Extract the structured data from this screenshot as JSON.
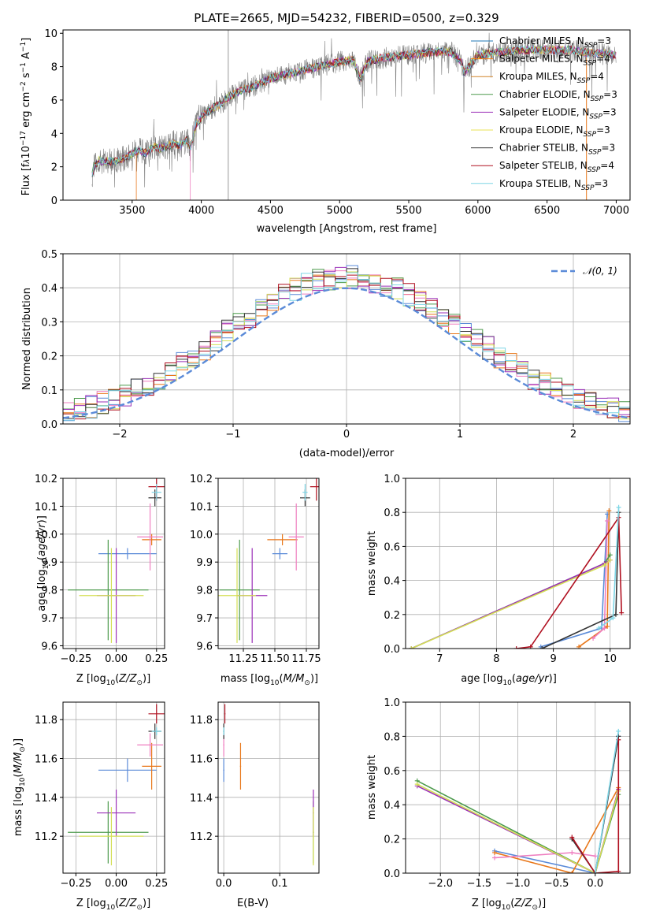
{
  "chart_data": [
    {
      "id": "spectrum",
      "type": "line",
      "title": "PLATE=2665, MJD=54232, FIBERID=0500, z=0.329",
      "xlabel": "wavelength [Angstrom, rest frame]",
      "ylabel": "Flux [f_λ10^-17 erg cm^-2 s^-1 A^-1]",
      "xlim": [
        3000,
        7100
      ],
      "ylim": [
        0,
        10.2
      ],
      "xticks": [
        3500,
        4000,
        4500,
        5000,
        5500,
        6000,
        6500,
        7000
      ],
      "yticks": [
        0,
        2,
        4,
        6,
        8,
        10
      ],
      "observed": {
        "x": [
          3210,
          3230,
          3260,
          3300,
          3350,
          3400,
          3450,
          3500,
          3550,
          3600,
          3650,
          3700,
          3750,
          3800,
          3850,
          3900,
          3920,
          3960,
          4000,
          4050,
          4100,
          4150,
          4200,
          4250,
          4300,
          4350,
          4400,
          4450,
          4500,
          4600,
          4700,
          4800,
          4900,
          5000,
          5100,
          5150,
          5200,
          5300,
          5400,
          5500,
          5600,
          5700,
          5800,
          5880,
          5900,
          6000,
          6100,
          6200,
          6300,
          6400,
          6500,
          6600,
          6700,
          6800,
          6900,
          7000
        ],
        "y": [
          1.6,
          2.1,
          2.4,
          2.3,
          2.3,
          2.4,
          2.5,
          2.8,
          3.0,
          2.8,
          3.2,
          3.1,
          3.2,
          3.4,
          3.3,
          3.6,
          3.0,
          4.5,
          5.0,
          5.3,
          5.6,
          5.8,
          6.2,
          6.4,
          6.6,
          6.7,
          6.9,
          7.1,
          7.3,
          7.5,
          7.7,
          7.9,
          8.1,
          8.3,
          8.4,
          7.3,
          8.3,
          8.5,
          8.6,
          8.7,
          8.8,
          8.9,
          8.9,
          8.3,
          7.6,
          8.7,
          8.8,
          8.9,
          9.0,
          9.0,
          9.0,
          9.0,
          9.0,
          8.8,
          8.8,
          8.7
        ]
      },
      "legend": [
        {
          "name": "Chabrier MILES, N_SSP=3",
          "color": "#1f77b4"
        },
        {
          "name": "Salpeter MILES, N_SSP=4",
          "color": "#ff7f0e"
        },
        {
          "name": "Kroupa MILES, N_SSP=4",
          "color": "#d1862a"
        },
        {
          "name": "Chabrier ELODIE, N_SSP=3",
          "color": "#4c9a4c"
        },
        {
          "name": "Salpeter ELODIE, N_SSP=3",
          "color": "#9b30b8"
        },
        {
          "name": "Kroupa ELODIE, N_SSP=3",
          "color": "#e8e055"
        },
        {
          "name": "Chabrier STELIB, N_SSP=3",
          "color": "#333333"
        },
        {
          "name": "Salpeter STELIB, N_SSP=4",
          "color": "#b01020"
        },
        {
          "name": "Kroupa STELIB, N_SSP=3",
          "color": "#7fd6e6"
        }
      ]
    },
    {
      "id": "residuals",
      "type": "line",
      "xlabel": "(data-model)/error",
      "ylabel": "Normed distribution",
      "xlim": [
        -2.5,
        2.5
      ],
      "ylim": [
        0,
        0.5
      ],
      "xticks": [
        -2,
        -1,
        0,
        1,
        2
      ],
      "yticks": [
        0.0,
        0.1,
        0.2,
        0.3,
        0.4,
        0.5
      ],
      "legend": [
        {
          "name": "N(0,1)",
          "color": "#5b8bd8"
        }
      ]
    },
    {
      "id": "age_vs_Z",
      "type": "scatter",
      "xlabel": "Z [log10(Z/Z⊙)]",
      "ylabel": "age  [log10(age/yr)]",
      "xlim": [
        -0.33,
        0.3
      ],
      "ylim": [
        9.59,
        10.2
      ],
      "xticks": [
        -0.25,
        0.0,
        0.25
      ],
      "yticks": [
        9.6,
        9.7,
        9.8,
        9.9,
        10.0,
        10.1,
        10.2
      ]
    },
    {
      "id": "age_vs_mass",
      "type": "scatter",
      "xlabel": "mass [log10(M/M⊙)]",
      "xlim": [
        11.05,
        11.85
      ],
      "ylim": [
        9.59,
        10.2
      ],
      "xticks": [
        11.25,
        11.5,
        11.75
      ],
      "yticks": [
        9.6,
        9.7,
        9.8,
        9.9,
        10.0,
        10.1,
        10.2
      ]
    },
    {
      "id": "weight_vs_age",
      "type": "line",
      "xlabel": "age  [log10(age/yr)]",
      "ylabel": "mass weight",
      "xlim": [
        6.4,
        10.35
      ],
      "ylim": [
        0,
        1.0
      ],
      "xticks": [
        7,
        8,
        9,
        10
      ],
      "yticks": [
        0.0,
        0.2,
        0.4,
        0.6,
        0.8,
        1.0
      ]
    },
    {
      "id": "mass_vs_Z",
      "type": "scatter",
      "xlabel": "Z [log10(Z/Z⊙)]",
      "ylabel": "mass [log10(M/M⊙)]",
      "xlim": [
        -0.33,
        0.3
      ],
      "ylim": [
        11.01,
        11.89
      ],
      "xticks": [
        -0.25,
        0.0,
        0.25
      ],
      "yticks": [
        11.2,
        11.4,
        11.6,
        11.8
      ]
    },
    {
      "id": "mass_vs_ebv",
      "type": "scatter",
      "xlabel": "E(B-V)",
      "xlim": [
        -0.01,
        0.17
      ],
      "ylim": [
        11.01,
        11.89
      ],
      "xticks": [
        0.0,
        0.1
      ],
      "yticks": [
        11.2,
        11.4,
        11.6,
        11.8
      ]
    },
    {
      "id": "weight_vs_Z",
      "type": "line",
      "xlabel": "Z [log10(Z/Z⊙)]",
      "ylabel": "mass weight",
      "xlim": [
        -2.45,
        0.45
      ],
      "ylim": [
        0,
        1.0
      ],
      "xticks": [
        -2.0,
        -1.5,
        -1.0,
        -0.5,
        0.0
      ],
      "yticks": [
        0.0,
        0.2,
        0.4,
        0.6,
        0.8,
        1.0
      ]
    }
  ],
  "models": [
    {
      "color": "#5b8bd8",
      "Z": 0.07,
      "Zerr": 0.18,
      "age": 9.93,
      "ageErr": 0.0,
      "mass": 11.54,
      "massErr": 0.06,
      "ebv": 0.0,
      "w_age": [
        [
          8.78,
          0.01
        ],
        [
          9.85,
          0.12
        ],
        [
          9.95,
          0.79
        ]
      ],
      "w_Z": [
        [
          -1.3,
          0.13
        ],
        [
          0.0,
          0.0
        ],
        [
          0.3,
          0.8
        ]
      ]
    },
    {
      "color": "#e8771a",
      "Z": 0.22,
      "Zerr": 0.06,
      "age": 9.98,
      "ageErr": 0.0,
      "mass": 11.56,
      "massErr": 0.12,
      "ebv": 0.03,
      "w_age": [
        [
          9.45,
          0.01
        ],
        [
          9.95,
          0.13
        ],
        [
          9.98,
          0.81
        ]
      ],
      "w_Z": [
        [
          -1.3,
          0.12
        ],
        [
          -0.3,
          0.0
        ],
        [
          0.3,
          0.5
        ]
      ]
    },
    {
      "color": "#ef7fc0",
      "Z": 0.21,
      "Zerr": 0.08,
      "age": 9.99,
      "ageErr": 0.12,
      "mass": 11.67,
      "massErr": 0.06,
      "ebv": 0.0,
      "w_age": [
        [
          9.7,
          0.06
        ],
        [
          9.9,
          0.12
        ],
        [
          9.95,
          0.75
        ]
      ],
      "w_Z": [
        [
          -1.3,
          0.09
        ],
        [
          -0.3,
          0.12
        ],
        [
          0.0,
          0.1
        ]
      ]
    },
    {
      "color": "#4c9a4c",
      "Z": -0.05,
      "Zerr": 0.25,
      "age": 9.8,
      "ageErr": 0.18,
      "mass": 11.22,
      "massErr": 0.16,
      "ebv": 0.16,
      "w_age": [
        [
          6.5,
          0.0
        ],
        [
          9.9,
          0.5
        ],
        [
          10.0,
          0.55
        ]
      ],
      "w_Z": [
        [
          -2.3,
          0.54
        ],
        [
          0.0,
          0.0
        ],
        [
          0.3,
          0.46
        ]
      ]
    },
    {
      "color": "#9b30b8",
      "Z": 0.0,
      "Zerr": 0.12,
      "age": 9.78,
      "ageErr": 0.17,
      "mass": 11.32,
      "massErr": 0.12,
      "ebv": 0.16,
      "w_age": [
        [
          6.5,
          0.0
        ],
        [
          9.9,
          0.5
        ],
        [
          10.0,
          0.52
        ]
      ],
      "w_Z": [
        [
          -2.3,
          0.51
        ],
        [
          0.0,
          0.0
        ],
        [
          0.3,
          0.49
        ]
      ]
    },
    {
      "color": "#d4df55",
      "Z": -0.03,
      "Zerr": 0.2,
      "age": 9.78,
      "ageErr": 0.17,
      "mass": 11.2,
      "massErr": 0.15,
      "ebv": 0.16,
      "w_age": [
        [
          6.5,
          0.0
        ],
        [
          9.9,
          0.49
        ],
        [
          10.0,
          0.52
        ]
      ],
      "w_Z": [
        [
          -2.3,
          0.52
        ],
        [
          0.0,
          0.0
        ],
        [
          0.3,
          0.48
        ]
      ]
    },
    {
      "color": "#333333",
      "Z": 0.24,
      "Zerr": 0.04,
      "age": 10.13,
      "ageErr": 0.03,
      "mass": 11.74,
      "massErr": 0.04,
      "ebv": 0.0,
      "w_age": [
        [
          8.8,
          0.0
        ],
        [
          10.1,
          0.2
        ],
        [
          10.15,
          0.8
        ]
      ],
      "w_Z": [
        [
          -0.3,
          0.2
        ],
        [
          0.0,
          0.0
        ],
        [
          0.3,
          0.8
        ]
      ]
    },
    {
      "color": "#b01020",
      "Z": 0.25,
      "Zerr": 0.05,
      "age": 10.17,
      "ageErr": 0.05,
      "mass": 11.83,
      "massErr": 0.05,
      "ebv": 0.002,
      "w_age": [
        [
          8.35,
          0.0
        ],
        [
          8.6,
          0.01
        ],
        [
          10.15,
          0.77
        ],
        [
          10.2,
          0.21
        ]
      ],
      "w_Z": [
        [
          -0.3,
          0.21
        ],
        [
          0.0,
          0.0
        ],
        [
          0.3,
          0.01
        ],
        [
          0.3,
          0.78
        ]
      ]
    },
    {
      "color": "#7fd6e6",
      "Z": 0.25,
      "Zerr": 0.03,
      "age": 10.15,
      "ageErr": 0.03,
      "mass": 11.74,
      "massErr": 0.02,
      "ebv": 0.0,
      "w_age": [
        [
          9.8,
          0.12
        ],
        [
          10.05,
          0.18
        ],
        [
          10.15,
          0.83
        ]
      ],
      "w_Z": [
        [
          0.0,
          0.0
        ],
        [
          0.3,
          0.83
        ]
      ]
    }
  ]
}
